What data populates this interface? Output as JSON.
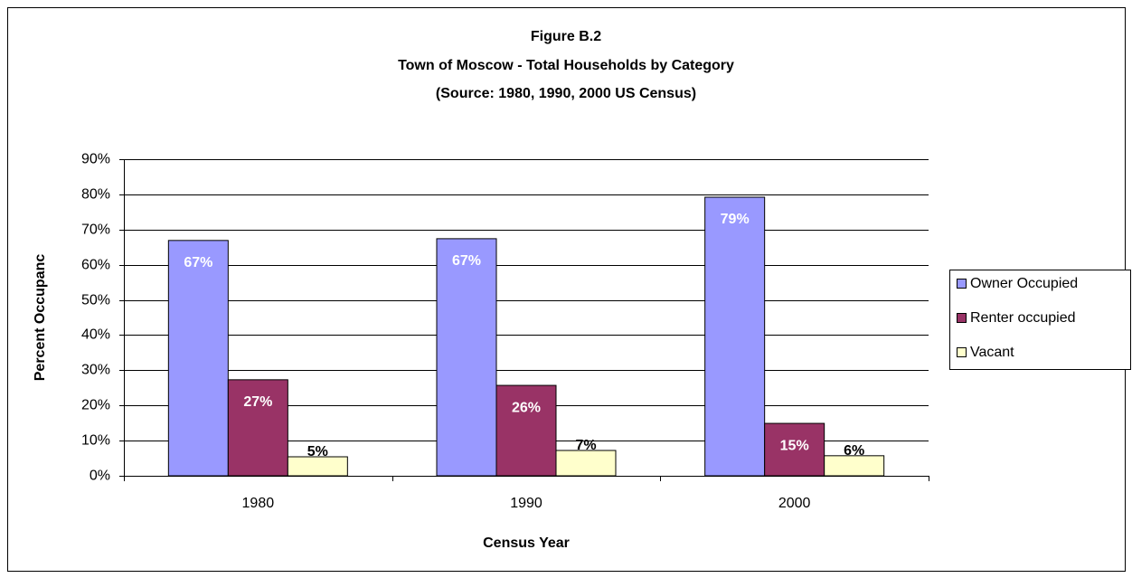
{
  "chart_data": {
    "type": "bar",
    "title": "Figure B.2",
    "subtitle": [
      "Town of Moscow - Total Households by Category",
      "(Source:  1980, 1990, 2000 US Census)"
    ],
    "x_label": "Census Year",
    "y_label": "Percent Occupanc",
    "categories": [
      "1980",
      "1990",
      "2000"
    ],
    "series": [
      {
        "name": "Owner Occupied",
        "color": "#9999ff",
        "values": [
          66.9,
          67.4,
          79.2
        ],
        "value_labels": [
          "67%",
          "67%",
          "79%"
        ]
      },
      {
        "name": "Renter occupied",
        "color": "#993366",
        "values": [
          27.3,
          25.7,
          14.9
        ],
        "value_labels": [
          "27%",
          "26%",
          "15%"
        ]
      },
      {
        "name": "Vacant",
        "color": "#ffffcc",
        "values": [
          5.4,
          7.2,
          5.7
        ],
        "value_labels": [
          "5%",
          "7%",
          "6%"
        ]
      }
    ],
    "ylim": [
      0,
      90
    ],
    "yticks": [
      {
        "value": 0,
        "label": "0%"
      },
      {
        "value": 10,
        "label": "10%"
      },
      {
        "value": 20,
        "label": "20%"
      },
      {
        "value": 30,
        "label": "30%"
      },
      {
        "value": 40,
        "label": "40%"
      },
      {
        "value": 50,
        "label": "50%"
      },
      {
        "value": 60,
        "label": "60%"
      },
      {
        "value": 70,
        "label": "70%"
      },
      {
        "value": 80,
        "label": "80%"
      },
      {
        "value": 90,
        "label": "90%"
      }
    ],
    "grid": true,
    "legend": "right"
  }
}
